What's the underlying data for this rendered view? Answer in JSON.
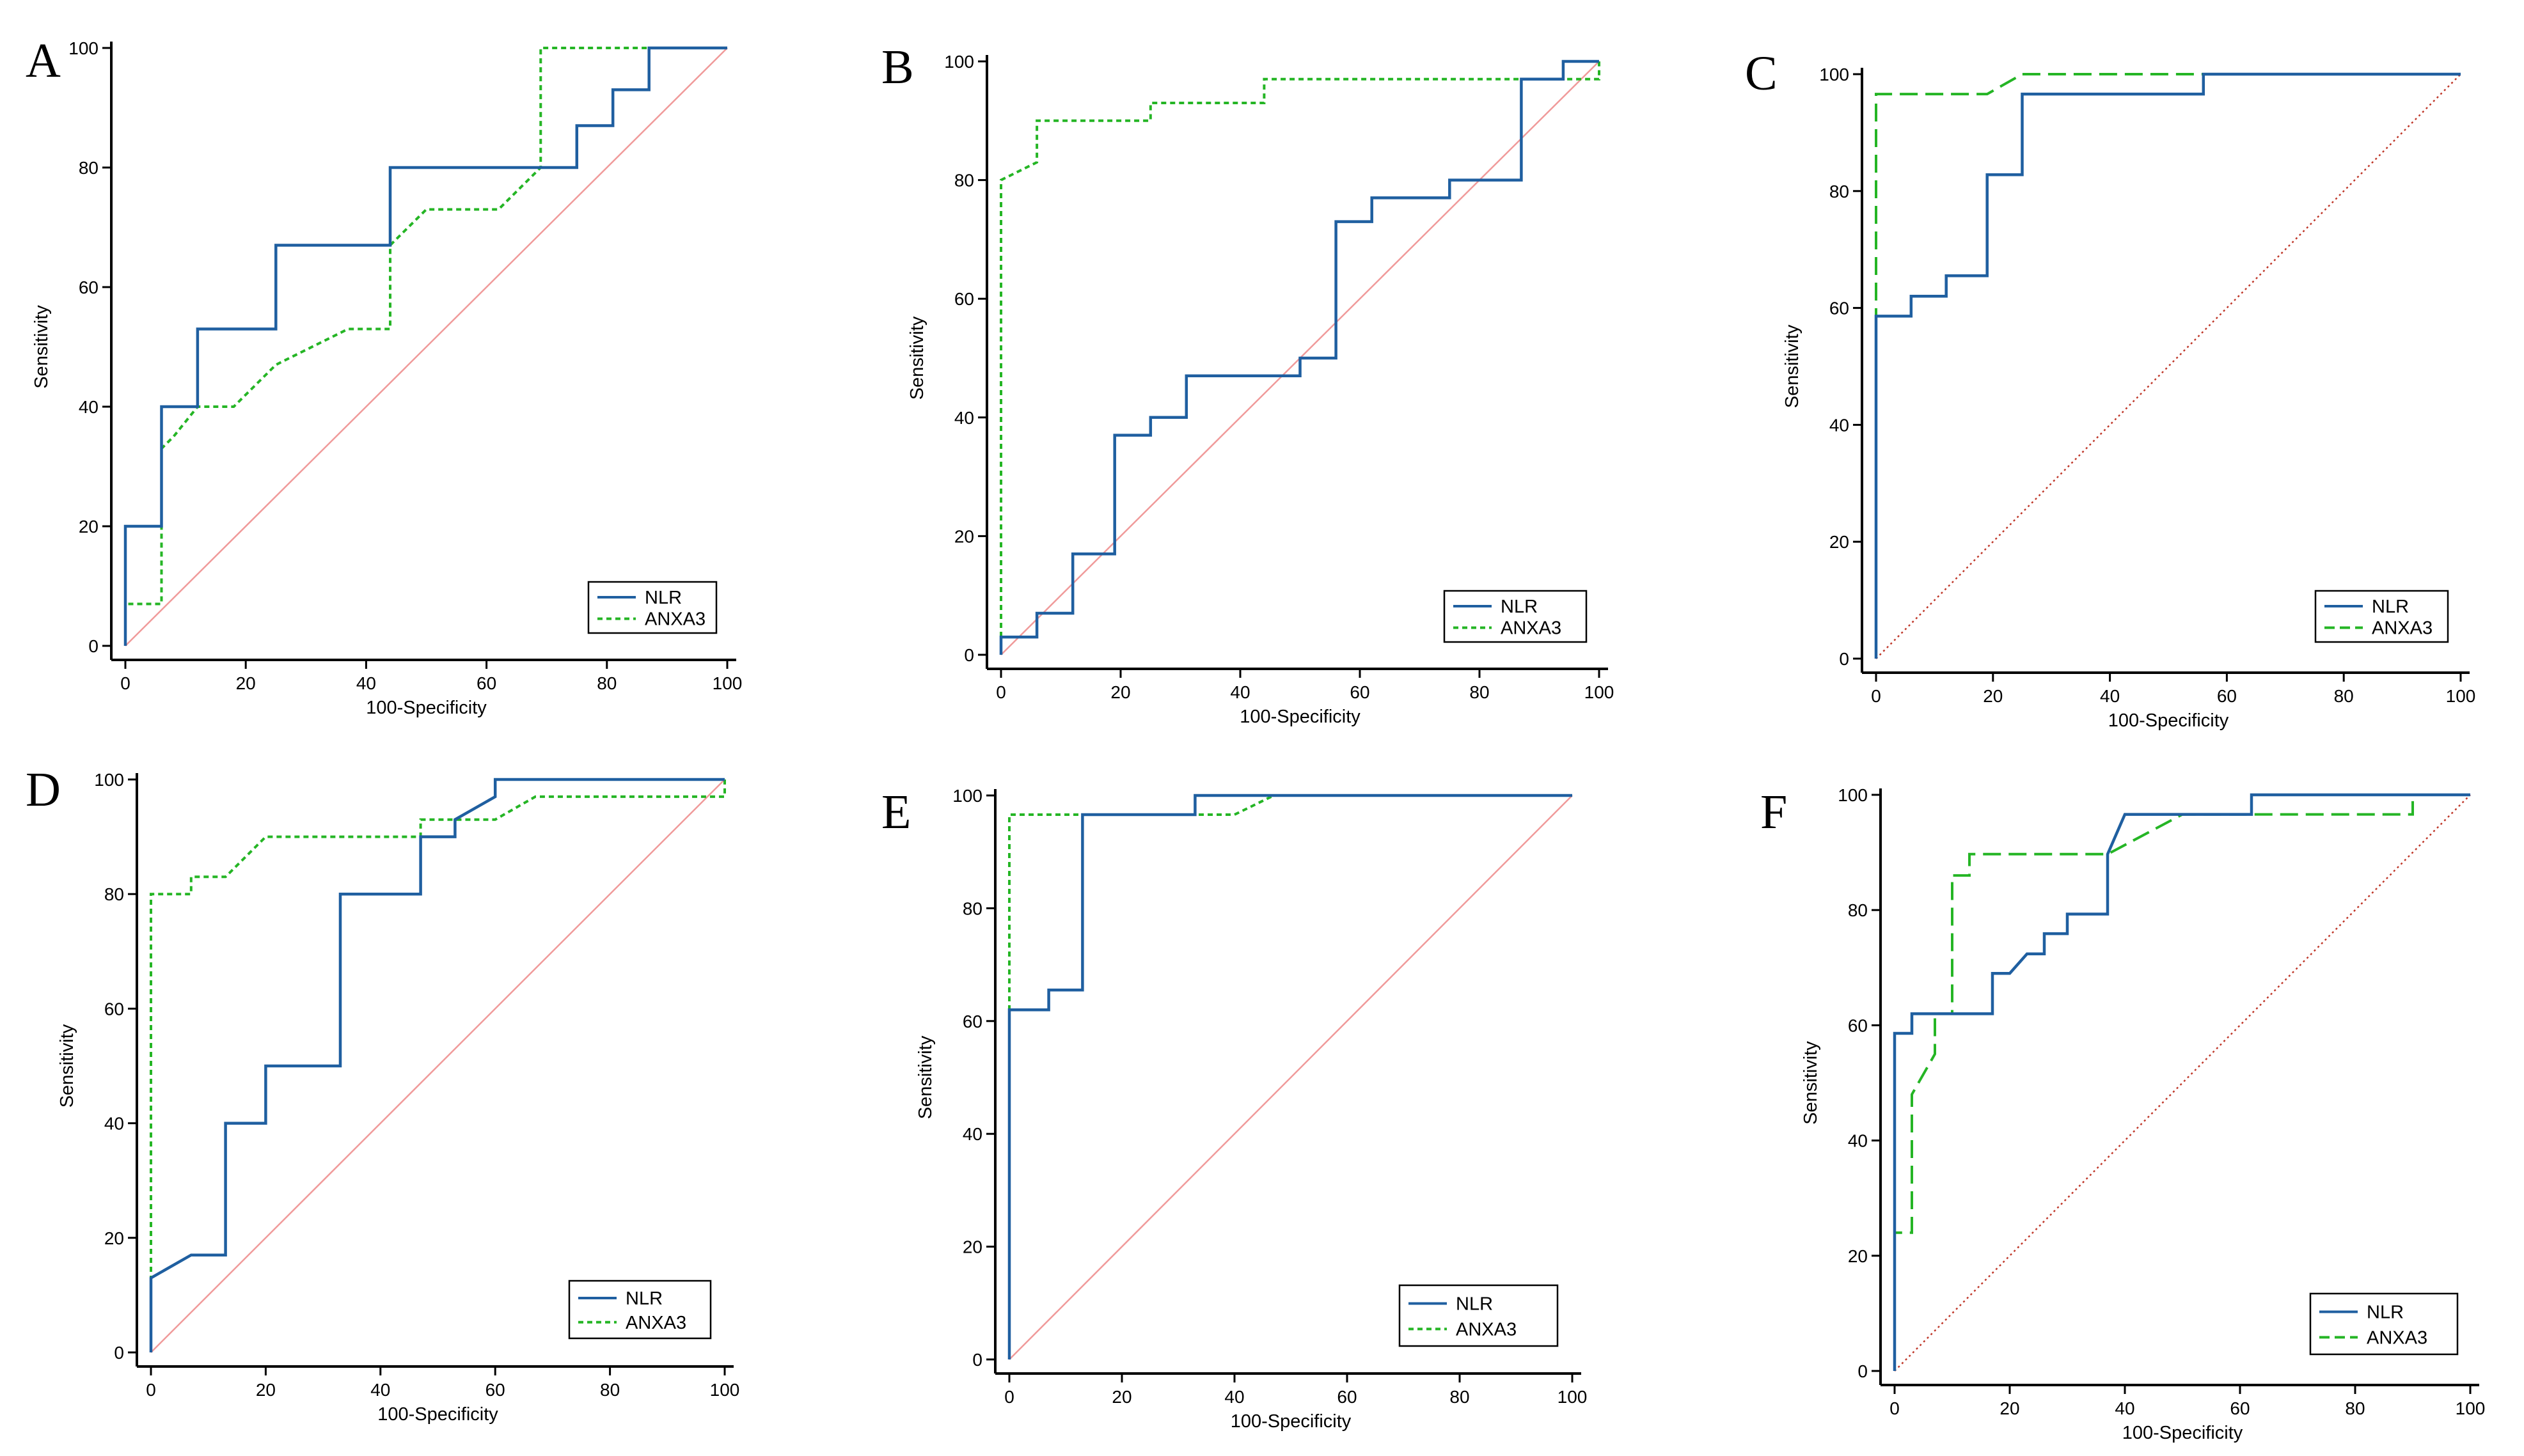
{
  "figure": {
    "colors": {
      "nlr": "#1f5fa0",
      "anxa3": "#25b525",
      "reference": "#f09a9a",
      "reference_dotted": "#c0392b",
      "axis": "#000000"
    }
  },
  "chart_data": [
    {
      "panel": "A",
      "type": "line",
      "xlabel": "100-Specificity",
      "ylabel": "Sensitivity",
      "xlim": [
        0,
        100
      ],
      "ylim": [
        0,
        100
      ],
      "xticks": [
        "0",
        "20",
        "40",
        "60",
        "80",
        "100"
      ],
      "yticks": [
        "0",
        "20",
        "40",
        "60",
        "80",
        "100"
      ],
      "legend": {
        "position": "bottom-right",
        "entries": [
          "NLR",
          "ANXA3"
        ]
      },
      "reference_style": "solid",
      "anxa3_style": "dotted",
      "series": [
        {
          "name": "NLR",
          "x": [
            0,
            0,
            6,
            6,
            12,
            12,
            25,
            25,
            44,
            44,
            75,
            75,
            81,
            81,
            87,
            87,
            100
          ],
          "y": [
            0,
            20,
            20,
            40,
            40,
            53,
            53,
            67,
            67,
            80,
            80,
            87,
            87,
            93,
            93,
            100,
            100
          ]
        },
        {
          "name": "ANXA3",
          "x": [
            0,
            0,
            6,
            6,
            8,
            12,
            18,
            25,
            37,
            44,
            44,
            50,
            62,
            69,
            69,
            100
          ],
          "y": [
            0,
            7,
            7,
            33,
            35,
            40,
            40,
            47,
            53,
            53,
            67,
            73,
            73,
            80,
            100,
            100
          ]
        }
      ]
    },
    {
      "panel": "B",
      "type": "line",
      "xlabel": "100-Specificity",
      "ylabel": "Sensitivity",
      "xlim": [
        0,
        100
      ],
      "ylim": [
        0,
        100
      ],
      "xticks": [
        "0",
        "20",
        "40",
        "60",
        "80",
        "100"
      ],
      "yticks": [
        "0",
        "20",
        "40",
        "60",
        "80",
        "100"
      ],
      "legend": {
        "position": "bottom-right",
        "entries": [
          "NLR",
          "ANXA3"
        ]
      },
      "reference_style": "solid",
      "anxa3_style": "dotted",
      "series": [
        {
          "name": "NLR",
          "x": [
            0,
            0,
            6,
            6,
            12,
            12,
            19,
            19,
            25,
            25,
            31,
            31,
            50,
            50,
            56,
            56,
            62,
            62,
            75,
            75,
            87,
            87,
            94,
            94,
            100
          ],
          "y": [
            0,
            3,
            3,
            7,
            7,
            17,
            17,
            37,
            37,
            40,
            40,
            47,
            47,
            50,
            50,
            73,
            73,
            77,
            77,
            80,
            80,
            97,
            97,
            100,
            100
          ]
        },
        {
          "name": "ANXA3",
          "x": [
            0,
            0,
            6,
            6,
            25,
            25,
            44,
            44,
            100,
            100
          ],
          "y": [
            0,
            80,
            83,
            90,
            90,
            93,
            93,
            97,
            97,
            100
          ]
        }
      ]
    },
    {
      "panel": "C",
      "type": "line",
      "xlabel": "100-Specificity",
      "ylabel": "Sensitivity",
      "xlim": [
        0,
        100
      ],
      "ylim": [
        0,
        100
      ],
      "xticks": [
        "0",
        "20",
        "40",
        "60",
        "80",
        "100"
      ],
      "yticks": [
        "0",
        "20",
        "40",
        "60",
        "80",
        "100"
      ],
      "legend": {
        "position": "bottom-right",
        "entries": [
          "NLR",
          "ANXA3"
        ]
      },
      "reference_style": "dotted",
      "anxa3_style": "dashed",
      "series": [
        {
          "name": "NLR",
          "x": [
            0,
            0,
            6,
            6,
            12,
            12,
            19,
            19,
            25,
            25,
            56,
            56,
            100
          ],
          "y": [
            0,
            58.6,
            58.6,
            62,
            62,
            65.5,
            65.5,
            82.8,
            82.8,
            96.6,
            96.6,
            100,
            100
          ]
        },
        {
          "name": "ANXA3",
          "x": [
            0,
            0,
            19,
            25,
            100
          ],
          "y": [
            0,
            96.6,
            96.6,
            100,
            100
          ]
        }
      ]
    },
    {
      "panel": "D",
      "type": "line",
      "xlabel": "100-Specificity",
      "ylabel": "Sensitivity",
      "xlim": [
        0,
        100
      ],
      "ylim": [
        0,
        100
      ],
      "xticks": [
        "0",
        "20",
        "40",
        "60",
        "80",
        "100"
      ],
      "yticks": [
        "0",
        "20",
        "40",
        "60",
        "80",
        "100"
      ],
      "legend": {
        "position": "bottom-right",
        "entries": [
          "NLR",
          "ANXA3"
        ]
      },
      "reference_style": "solid",
      "anxa3_style": "dotted",
      "series": [
        {
          "name": "NLR",
          "x": [
            0,
            0,
            7,
            13,
            13,
            20,
            20,
            33,
            33,
            47,
            47,
            53,
            53,
            60,
            60,
            100
          ],
          "y": [
            0,
            13,
            17,
            17,
            40,
            40,
            50,
            50,
            80,
            80,
            90,
            90,
            93,
            97,
            100,
            100
          ]
        },
        {
          "name": "ANXA3",
          "x": [
            0,
            0,
            7,
            7,
            13,
            20,
            47,
            47,
            60,
            67,
            67,
            100,
            100
          ],
          "y": [
            0,
            80,
            80,
            83,
            83,
            90,
            90,
            93,
            93,
            97,
            97,
            97,
            100
          ]
        }
      ]
    },
    {
      "panel": "E",
      "type": "line",
      "xlabel": "100-Specificity",
      "ylabel": "Sensitivity",
      "xlim": [
        0,
        100
      ],
      "ylim": [
        0,
        100
      ],
      "xticks": [
        "0",
        "20",
        "40",
        "60",
        "80",
        "100"
      ],
      "yticks": [
        "0",
        "20",
        "40",
        "60",
        "80",
        "100"
      ],
      "legend": {
        "position": "bottom-right",
        "entries": [
          "NLR",
          "ANXA3"
        ]
      },
      "reference_style": "solid",
      "anxa3_style": "dotted",
      "series": [
        {
          "name": "NLR",
          "x": [
            0,
            0,
            7,
            7,
            13,
            13,
            33,
            33,
            100
          ],
          "y": [
            0,
            62,
            62,
            65.5,
            65.5,
            96.6,
            96.6,
            100,
            100
          ]
        },
        {
          "name": "ANXA3",
          "x": [
            0,
            0,
            40,
            47,
            100
          ],
          "y": [
            0,
            96.6,
            96.6,
            100,
            100
          ]
        }
      ]
    },
    {
      "panel": "F",
      "type": "line",
      "xlabel": "100-Specificity",
      "ylabel": "Sensitivity",
      "xlim": [
        0,
        100
      ],
      "ylim": [
        0,
        100
      ],
      "xticks": [
        "0",
        "20",
        "40",
        "60",
        "80",
        "100"
      ],
      "yticks": [
        "0",
        "20",
        "40",
        "60",
        "80",
        "100"
      ],
      "legend": {
        "position": "bottom-right",
        "entries": [
          "NLR",
          "ANXA3"
        ]
      },
      "reference_style": "dotted",
      "anxa3_style": "dashed",
      "series": [
        {
          "name": "NLR",
          "x": [
            0,
            0,
            3,
            3,
            17,
            17,
            20,
            23,
            26,
            26,
            30,
            30,
            37,
            37,
            40,
            62,
            62,
            100
          ],
          "y": [
            0,
            58.6,
            58.6,
            62,
            62,
            69,
            69,
            72.4,
            72.4,
            75.9,
            75.9,
            79.3,
            79.3,
            89.7,
            96.6,
            96.6,
            100,
            100
          ]
        },
        {
          "name": "ANXA3",
          "x": [
            0,
            0,
            3,
            3,
            7,
            7,
            10,
            10,
            13,
            13,
            37,
            50,
            90,
            90,
            100
          ],
          "y": [
            0,
            24,
            24,
            48,
            55,
            62,
            62,
            86,
            86,
            89.7,
            89.7,
            96.6,
            96.6,
            100,
            100
          ]
        }
      ]
    }
  ]
}
